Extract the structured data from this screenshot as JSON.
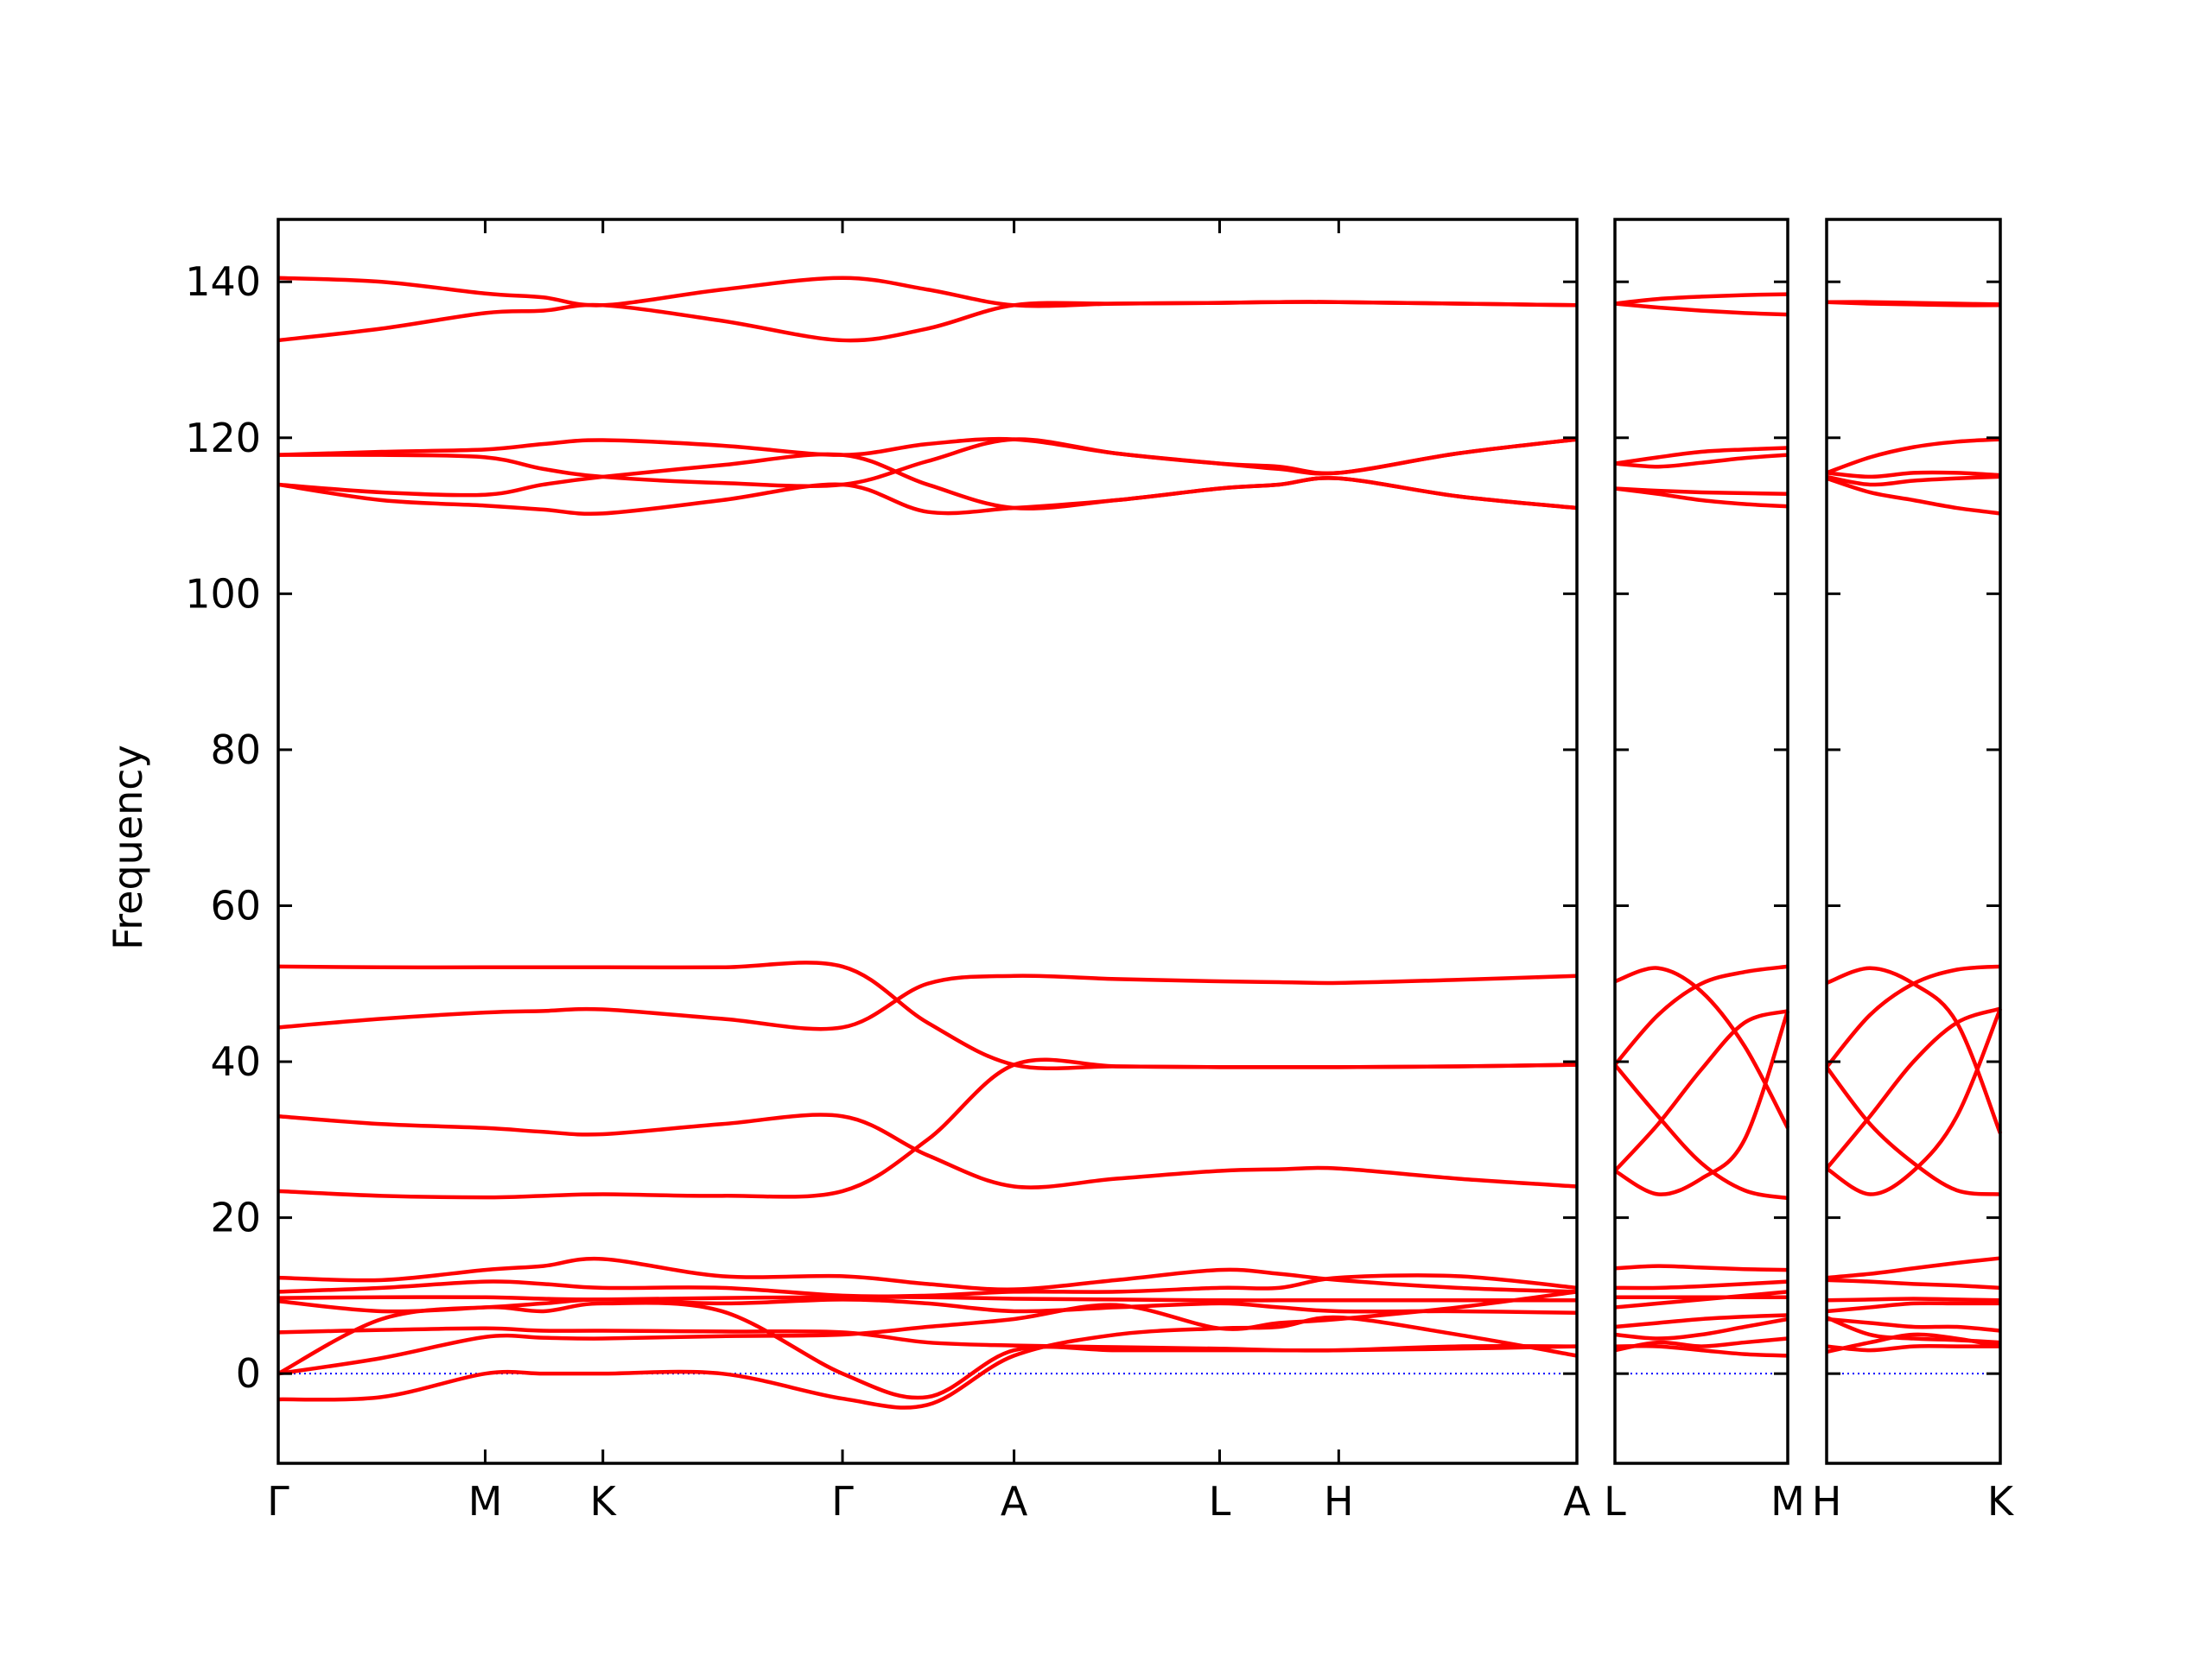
{
  "chart_data": [
    {
      "type": "line",
      "ylabel": "Frequency",
      "color": "#ff0000",
      "zero_line_color": "#0000ff",
      "ylim": [
        -11.5,
        148
      ],
      "yticks": [
        0,
        20,
        40,
        60,
        80,
        100,
        120,
        140
      ],
      "xlim": [
        0,
        916
      ],
      "xticks": [
        {
          "value": 0,
          "label": "Γ"
        },
        {
          "value": 146,
          "label": "M"
        },
        {
          "value": 229,
          "label": "K"
        },
        {
          "value": 398,
          "label": "Γ"
        },
        {
          "value": 519,
          "label": "A"
        },
        {
          "value": 664,
          "label": "L"
        },
        {
          "value": 748,
          "label": "H"
        },
        {
          "value": 916,
          "label": "A"
        }
      ],
      "x": [
        0,
        73,
        146,
        187,
        229,
        313,
        398,
        458,
        519,
        591,
        664,
        706,
        748,
        832,
        916
      ],
      "series": [
        {
          "values": [
            140.5,
            140,
            138.5,
            138,
            137,
            139,
            140.5,
            139,
            137,
            137.2,
            137.3,
            137.4,
            137.4,
            137.2,
            137
          ]
        },
        {
          "values": [
            132.5,
            134,
            136,
            136.3,
            137,
            135,
            132.5,
            134,
            137,
            137.2,
            137.3,
            137.4,
            137.4,
            137.2,
            137
          ]
        },
        {
          "values": [
            117.8,
            118.2,
            118.5,
            119.2,
            119.7,
            119,
            117.8,
            119.2,
            119.8,
            118,
            116.7,
            116.3,
            115.5,
            118,
            119.8
          ]
        },
        {
          "values": [
            117.8,
            117.8,
            117.5,
            116,
            115,
            114.2,
            114,
            117,
            119.8,
            118,
            116.7,
            116,
            115.5,
            118,
            119.8
          ]
        },
        {
          "values": [
            114,
            113,
            112.7,
            114,
            115,
            116.5,
            117.8,
            114,
            111,
            112,
            113.5,
            114,
            114.8,
            112.5,
            111
          ]
        },
        {
          "values": [
            114,
            112,
            111.3,
            110.8,
            110.3,
            112,
            114,
            110.5,
            111,
            112,
            113.5,
            114,
            114.8,
            112.5,
            111
          ]
        },
        {
          "values": [
            52.2,
            52.1,
            52.1,
            52.1,
            52.1,
            52.1,
            52.2,
            45,
            39.6,
            39.4,
            39.3,
            39.3,
            39.3,
            39.4,
            39.6
          ]
        },
        {
          "values": [
            44.4,
            45.5,
            46.3,
            46.5,
            46.7,
            45.5,
            44.4,
            50,
            51,
            50.6,
            50.3,
            50.2,
            50.1,
            50.5,
            51
          ]
        },
        {
          "values": [
            33,
            32,
            31.5,
            31,
            30.7,
            32,
            33,
            28,
            24,
            25,
            26,
            26.2,
            26.3,
            25,
            24
          ]
        },
        {
          "values": [
            23.4,
            22.8,
            22.6,
            22.8,
            23,
            22.8,
            23.4,
            30,
            39.6,
            39.4,
            39.3,
            39.3,
            39.3,
            39.4,
            39.6
          ]
        },
        {
          "values": [
            12.3,
            12,
            13.3,
            13.8,
            14.7,
            12.5,
            12.5,
            11.5,
            10.8,
            12,
            13.3,
            12.8,
            12,
            11,
            10.5
          ]
        },
        {
          "values": [
            10.5,
            11,
            11.8,
            11.5,
            11,
            11,
            10,
            10,
            10.5,
            10.5,
            11,
            11,
            12.3,
            12.5,
            11
          ]
        },
        {
          "values": [
            9.7,
            9.8,
            9.8,
            9.6,
            9.5,
            9.7,
            9.8,
            9.8,
            9.6,
            9.5,
            9.4,
            9.4,
            9.4,
            9.4,
            9.4
          ]
        },
        {
          "values": [
            9.3,
            8,
            8.5,
            9,
            9.5,
            9,
            9.5,
            9,
            8,
            8.5,
            9,
            8.5,
            8,
            8,
            7.8
          ]
        },
        {
          "values": [
            5.3,
            5.6,
            5.8,
            5.5,
            5.5,
            5.4,
            5.3,
            4,
            3.6,
            3.4,
            3.2,
            3,
            3,
            3.2,
            3.5
          ]
        },
        {
          "values": [
            0,
            2,
            4.7,
            4.6,
            4.5,
            4.8,
            5,
            6,
            7,
            8.8,
            5.8,
            6.5,
            7,
            8.5,
            10.5
          ]
        },
        {
          "values": [
            -3.3,
            -3,
            0,
            0,
            0,
            0,
            -3.2,
            -4,
            2.3,
            5,
            5.8,
            6,
            7.2,
            5,
            2.3
          ]
        },
        {
          "values": [
            0,
            7,
            8.5,
            8,
            9,
            8,
            0,
            -3,
            3,
            3,
            3,
            3,
            3,
            3.5,
            3.5
          ]
        }
      ]
    },
    {
      "type": "line",
      "color": "#ff0000",
      "zero_line_color": "#0000ff",
      "ylim": [
        -11.5,
        148
      ],
      "yticks": [
        0,
        20,
        40,
        60,
        80,
        100,
        120,
        140
      ],
      "xlim": [
        0,
        122
      ],
      "xticks": [
        {
          "value": 0,
          "label": "L"
        },
        {
          "value": 122,
          "label": "M"
        }
      ],
      "x": [
        0,
        30.5,
        61,
        91.5,
        122
      ],
      "series": [
        {
          "values": [
            137.2,
            137.8,
            138.1,
            138.3,
            138.4
          ]
        },
        {
          "values": [
            137.2,
            136.7,
            136.3,
            136,
            135.8
          ]
        },
        {
          "values": [
            116.7,
            117.5,
            118.2,
            118.5,
            118.7
          ]
        },
        {
          "values": [
            116.7,
            116.3,
            116.8,
            117.4,
            117.8
          ]
        },
        {
          "values": [
            113.5,
            113.2,
            113,
            112.9,
            112.8
          ]
        },
        {
          "values": [
            113.5,
            112.8,
            112,
            111.5,
            111.2
          ]
        },
        {
          "values": [
            50.3,
            52,
            49,
            42,
            31.5
          ]
        },
        {
          "values": [
            39.6,
            46,
            50,
            51.5,
            52.2
          ]
        },
        {
          "values": [
            39.6,
            33,
            27,
            23.5,
            22.5
          ]
        },
        {
          "values": [
            26,
            23,
            25,
            30,
            46.5
          ]
        },
        {
          "values": [
            26,
            32,
            39,
            45,
            46.5
          ]
        },
        {
          "values": [
            13.5,
            13.8,
            13.6,
            13.4,
            13.3
          ]
        },
        {
          "values": [
            11,
            11,
            11.2,
            11.5,
            11.8
          ]
        },
        {
          "values": [
            9.8,
            9.8,
            9.8,
            9.8,
            9.8
          ]
        },
        {
          "values": [
            8.5,
            9,
            9.5,
            10,
            10.5
          ]
        },
        {
          "values": [
            6,
            6.5,
            7,
            7.3,
            7.5
          ]
        },
        {
          "values": [
            5,
            4.5,
            5,
            6,
            7
          ]
        },
        {
          "values": [
            3.5,
            3.5,
            3,
            2.5,
            2.3
          ]
        },
        {
          "values": [
            3,
            4,
            3.5,
            4,
            4.5
          ]
        }
      ]
    },
    {
      "type": "line",
      "color": "#ff0000",
      "zero_line_color": "#0000ff",
      "ylim": [
        -11.5,
        148
      ],
      "yticks": [
        0,
        20,
        40,
        60,
        80,
        100,
        120,
        140
      ],
      "xlim": [
        0,
        123
      ],
      "xticks": [
        {
          "value": 0,
          "label": "H"
        },
        {
          "value": 123,
          "label": "K"
        }
      ],
      "x": [
        0,
        30.75,
        61.5,
        92.25,
        123
      ],
      "series": [
        {
          "values": [
            137.4,
            137.4,
            137.3,
            137.2,
            137.1
          ]
        },
        {
          "values": [
            137.4,
            137.2,
            137.1,
            137,
            137
          ]
        },
        {
          "values": [
            115.5,
            117.5,
            118.8,
            119.5,
            119.8
          ]
        },
        {
          "values": [
            115.5,
            115,
            115.5,
            115.5,
            115.2
          ]
        },
        {
          "values": [
            115,
            114,
            114.5,
            114.8,
            115
          ]
        },
        {
          "values": [
            114.8,
            113,
            112,
            111,
            110.3
          ]
        },
        {
          "values": [
            50.1,
            52,
            50,
            45,
            30.8
          ]
        },
        {
          "values": [
            39.3,
            46,
            50,
            51.8,
            52.2
          ]
        },
        {
          "values": [
            39.3,
            32,
            27,
            23.5,
            23
          ]
        },
        {
          "values": [
            26.3,
            23,
            26,
            33,
            46.8
          ]
        },
        {
          "values": [
            26.3,
            33,
            40,
            45,
            46.8
          ]
        },
        {
          "values": [
            12.3,
            12.8,
            13.5,
            14.2,
            14.8
          ]
        },
        {
          "values": [
            12,
            11.8,
            11.5,
            11.3,
            11
          ]
        },
        {
          "values": [
            9.4,
            9.5,
            9.6,
            9.5,
            9.4
          ]
        },
        {
          "values": [
            8,
            8.5,
            9,
            9,
            9
          ]
        },
        {
          "values": [
            7,
            6.5,
            6,
            6,
            5.5
          ]
        },
        {
          "values": [
            7.2,
            5,
            4.5,
            4.3,
            4
          ]
        },
        {
          "values": [
            3.5,
            3,
            3.5,
            3.5,
            3.5
          ]
        },
        {
          "values": [
            2.8,
            4,
            5,
            4.5,
            3.5
          ]
        }
      ]
    }
  ]
}
